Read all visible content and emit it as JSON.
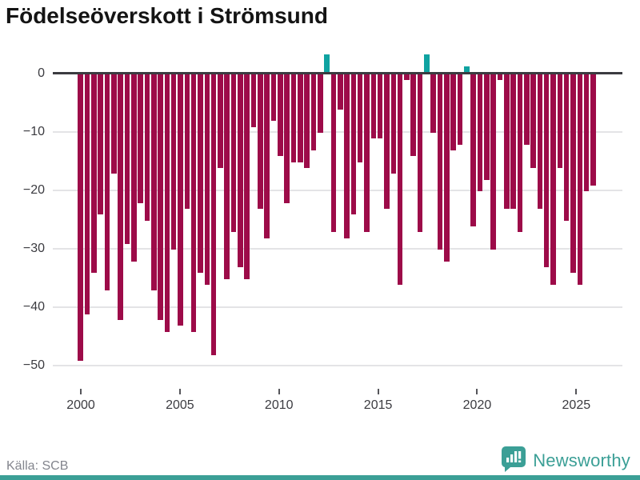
{
  "title": "Födelseöverskott i Strömsund",
  "source_label": "Källa: SCB",
  "branding": {
    "logo_text": "Newsworthy",
    "logo_icon": "bar-chart-speech-bubble-icon",
    "brand_color": "#3b9f96"
  },
  "colors": {
    "negative_bar": "#9d0b49",
    "positive_bar": "#0fa3a1",
    "zero_line": "#3b3b40",
    "gridline": "#e4e4e6",
    "axis_text": "#3b3b40",
    "title_text": "#141414",
    "source_text": "#83858d"
  },
  "chart_data": {
    "type": "bar",
    "title": "Födelseöverskott i Strömsund",
    "xlabel": "",
    "ylabel": "",
    "source": "SCB",
    "frequency": "3 periods per year (4-month periods)",
    "start_year": 2000,
    "end_year": 2025,
    "grid": true,
    "legend": "none",
    "ylim": [
      -52,
      4
    ],
    "y_tick_values": [
      0,
      -10,
      -20,
      -30,
      -40,
      -50
    ],
    "y_tick_labels": [
      "0",
      "−10",
      "−20",
      "−30",
      "−40",
      "−50"
    ],
    "x_ticks": [
      2000,
      2005,
      2010,
      2015,
      2020,
      2025
    ],
    "x_tick_labels": [
      "2000",
      "2005",
      "2010",
      "2015",
      "2020",
      "2025"
    ],
    "values": [
      -49,
      -41,
      -34,
      -24,
      -37,
      -17,
      -42,
      -29,
      -32,
      -22,
      -25,
      -37,
      -42,
      -44,
      -30,
      -43,
      -23,
      -44,
      -34,
      -36,
      -48,
      -16,
      -35,
      -27,
      -33,
      -35,
      -9,
      -23,
      -28,
      -8,
      -14,
      -22,
      -15,
      -15,
      -16,
      -13,
      -10,
      3,
      -27,
      -6,
      -28,
      -24,
      -15,
      -27,
      -11,
      -11,
      -23,
      -17,
      -36,
      -1,
      -14,
      -27,
      3,
      -10,
      -30,
      -32,
      -13,
      -12,
      1,
      -26,
      -20,
      -18,
      -30,
      -1,
      -23,
      -23,
      -27,
      -12,
      -16,
      -23,
      -33,
      -36,
      -16,
      -25,
      -34,
      -36,
      -20,
      -19
    ]
  }
}
